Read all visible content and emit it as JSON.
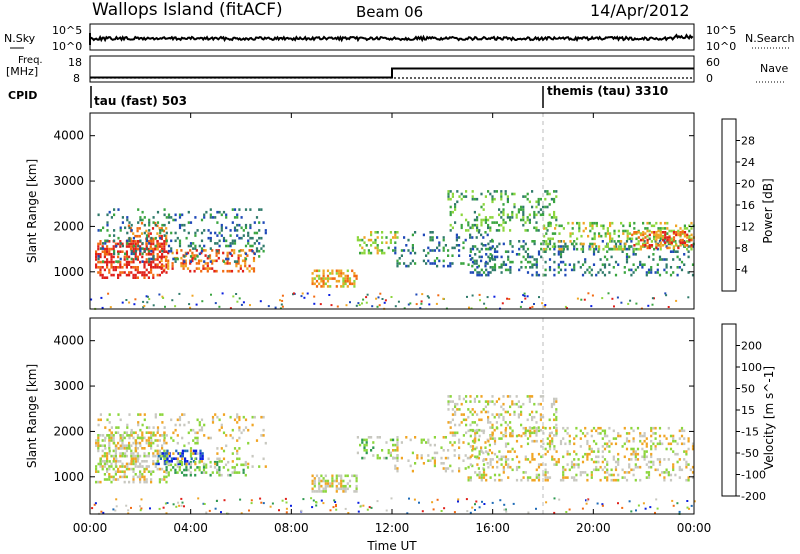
{
  "header": {
    "title": "Wallops Island (fitACF)",
    "beam": "Beam 06",
    "date": "14/Apr/2012"
  },
  "sky_panel": {
    "left_label": "N.Sky",
    "left_ticks": [
      "10^5",
      "10^0"
    ],
    "right_ticks": [
      "10^5",
      "10^0"
    ],
    "right_label": "N.Search"
  },
  "freq_panel": {
    "left_label_line1": "Freq.",
    "left_label_line2": "[MHz]",
    "left_ticks": [
      "18",
      "8"
    ],
    "right_ticks": [
      "60",
      "0"
    ],
    "right_label": "Nave",
    "freq_steps": [
      {
        "t_hours": 0,
        "mhz": 10.5
      },
      {
        "t_hours": 12,
        "mhz": 15.5
      },
      {
        "t_hours": 24,
        "mhz": 15.5
      }
    ],
    "nave_level": 0
  },
  "cpid": {
    "label": "CPID",
    "segments": [
      {
        "start_hours": 0,
        "text": "tau (fast) 503"
      },
      {
        "start_hours": 18,
        "text": "themis (tau) 3310"
      }
    ]
  },
  "x_axis": {
    "label": "Time UT",
    "ticks": [
      "00:00",
      "04:00",
      "08:00",
      "12:00",
      "16:00",
      "20:00",
      "00:00"
    ],
    "tick_hours": [
      0,
      4,
      8,
      12,
      16,
      20,
      24
    ]
  },
  "power_panel": {
    "ylabel": "Slant Range [km]",
    "yticks": [
      "4000",
      "3000",
      "2000",
      "1000"
    ],
    "colorbar_label": "Power [dB]",
    "colorbar_ticks": [
      "28",
      "24",
      "20",
      "16",
      "12",
      "8",
      "4"
    ],
    "colors": [
      "#0a1fe0",
      "#1f49b8",
      "#2f7a6a",
      "#3aa540",
      "#8cd63c",
      "#f0a524",
      "#f26a12",
      "#e0201a"
    ]
  },
  "velocity_panel": {
    "ylabel": "Slant Range [km]",
    "yticks": [
      "4000",
      "3000",
      "2000",
      "1000"
    ],
    "colorbar_label": "Velocity [m s^-1]",
    "colorbar_ticks": [
      "200",
      "100",
      "50",
      "15",
      "-15",
      "-50",
      "-100",
      "-200"
    ],
    "colors": [
      "#0a1fe0",
      "#1f6bb8",
      "#2f9a50",
      "#8cd63c",
      "#c8c8c0",
      "#f0a524",
      "#f26a12",
      "#e0201a"
    ]
  },
  "chart_data": {
    "type": "heatmap",
    "title": "Wallops Island (fitACF)",
    "xlabel": "Time UT",
    "ylabel": "Slant Range [km]",
    "xlim": [
      0,
      24
    ],
    "ylim": [
      180,
      4500
    ],
    "power_regions": [
      {
        "t0": 0.2,
        "t1": 3.0,
        "r0": 850,
        "r1": 1700,
        "level": 7,
        "density": 0.85
      },
      {
        "t0": 1.5,
        "t1": 3.0,
        "r0": 1500,
        "r1": 2100,
        "level": 6,
        "density": 0.6
      },
      {
        "t0": 2.8,
        "t1": 6.5,
        "r0": 1000,
        "r1": 1500,
        "level": 6,
        "density": 0.7
      },
      {
        "t0": 0.3,
        "t1": 7.0,
        "r0": 1200,
        "r1": 2400,
        "level": 2,
        "density": 0.35
      },
      {
        "t0": 8.8,
        "t1": 10.6,
        "r0": 650,
        "r1": 1050,
        "level": 5,
        "density": 0.85
      },
      {
        "t0": 10.6,
        "t1": 12.2,
        "r0": 1400,
        "r1": 1900,
        "level": 4,
        "density": 0.6
      },
      {
        "t0": 12.0,
        "t1": 16.0,
        "r0": 1100,
        "r1": 1900,
        "level": 2,
        "density": 0.35
      },
      {
        "t0": 14.2,
        "t1": 18.5,
        "r0": 1900,
        "r1": 2800,
        "level": 3,
        "density": 0.45
      },
      {
        "t0": 15.0,
        "t1": 24.0,
        "r0": 900,
        "r1": 1700,
        "level": 2,
        "density": 0.4
      },
      {
        "t0": 18.0,
        "t1": 24.0,
        "r0": 1500,
        "r1": 2100,
        "level": 4,
        "density": 0.5
      },
      {
        "t0": 21.5,
        "t1": 24.0,
        "r0": 1500,
        "r1": 1900,
        "level": 6,
        "density": 0.6
      }
    ],
    "velocity_regions": [
      {
        "t0": 0.2,
        "t1": 3.0,
        "r0": 900,
        "r1": 2000,
        "level": 4,
        "density": 0.8
      },
      {
        "t0": 2.6,
        "t1": 4.5,
        "r0": 1300,
        "r1": 1600,
        "level": 0,
        "density": 0.8
      },
      {
        "t0": 3.0,
        "t1": 6.3,
        "r0": 1050,
        "r1": 1350,
        "level": 3,
        "density": 0.75
      },
      {
        "t0": 0.3,
        "t1": 7.0,
        "r0": 1200,
        "r1": 2400,
        "level": 4,
        "density": 0.25
      },
      {
        "t0": 8.8,
        "t1": 10.6,
        "r0": 650,
        "r1": 1050,
        "level": 4,
        "density": 0.85
      },
      {
        "t0": 10.6,
        "t1": 12.2,
        "r0": 1400,
        "r1": 1900,
        "level": 3,
        "density": 0.5
      },
      {
        "t0": 12.0,
        "t1": 16.0,
        "r0": 1100,
        "r1": 1900,
        "level": 4,
        "density": 0.3
      },
      {
        "t0": 14.2,
        "t1": 18.5,
        "r0": 1900,
        "r1": 2800,
        "level": 4,
        "density": 0.45
      },
      {
        "t0": 15.0,
        "t1": 24.0,
        "r0": 900,
        "r1": 2100,
        "level": 4,
        "density": 0.45
      }
    ]
  }
}
